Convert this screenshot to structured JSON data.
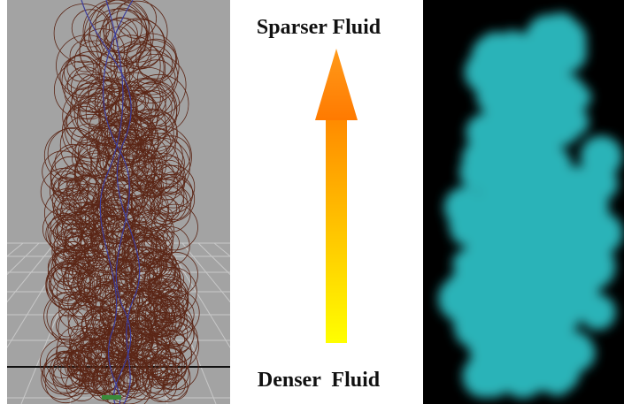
{
  "arrow": {
    "top_label": "Sparser Fluid",
    "bottom_label": "Denser  Fluid"
  }
}
